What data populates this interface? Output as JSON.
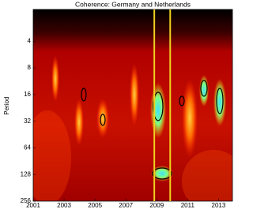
{
  "chart_data": {
    "type": "wavelet-coherence",
    "title": "Coherence: Germany and Netherlands",
    "y_label": "Period",
    "xlim": [
      2001,
      2013.9
    ],
    "xticks": [
      2001,
      2003,
      2005,
      2007,
      2009,
      2011,
      2013
    ],
    "ylim": [
      1.75,
      256
    ],
    "yticks": [
      4,
      8,
      16,
      32,
      64,
      128,
      256
    ],
    "y_log": true,
    "y_reversed": true,
    "vlines": [
      2008.84,
      2009.87
    ],
    "vline_color": "#f0d020"
  }
}
